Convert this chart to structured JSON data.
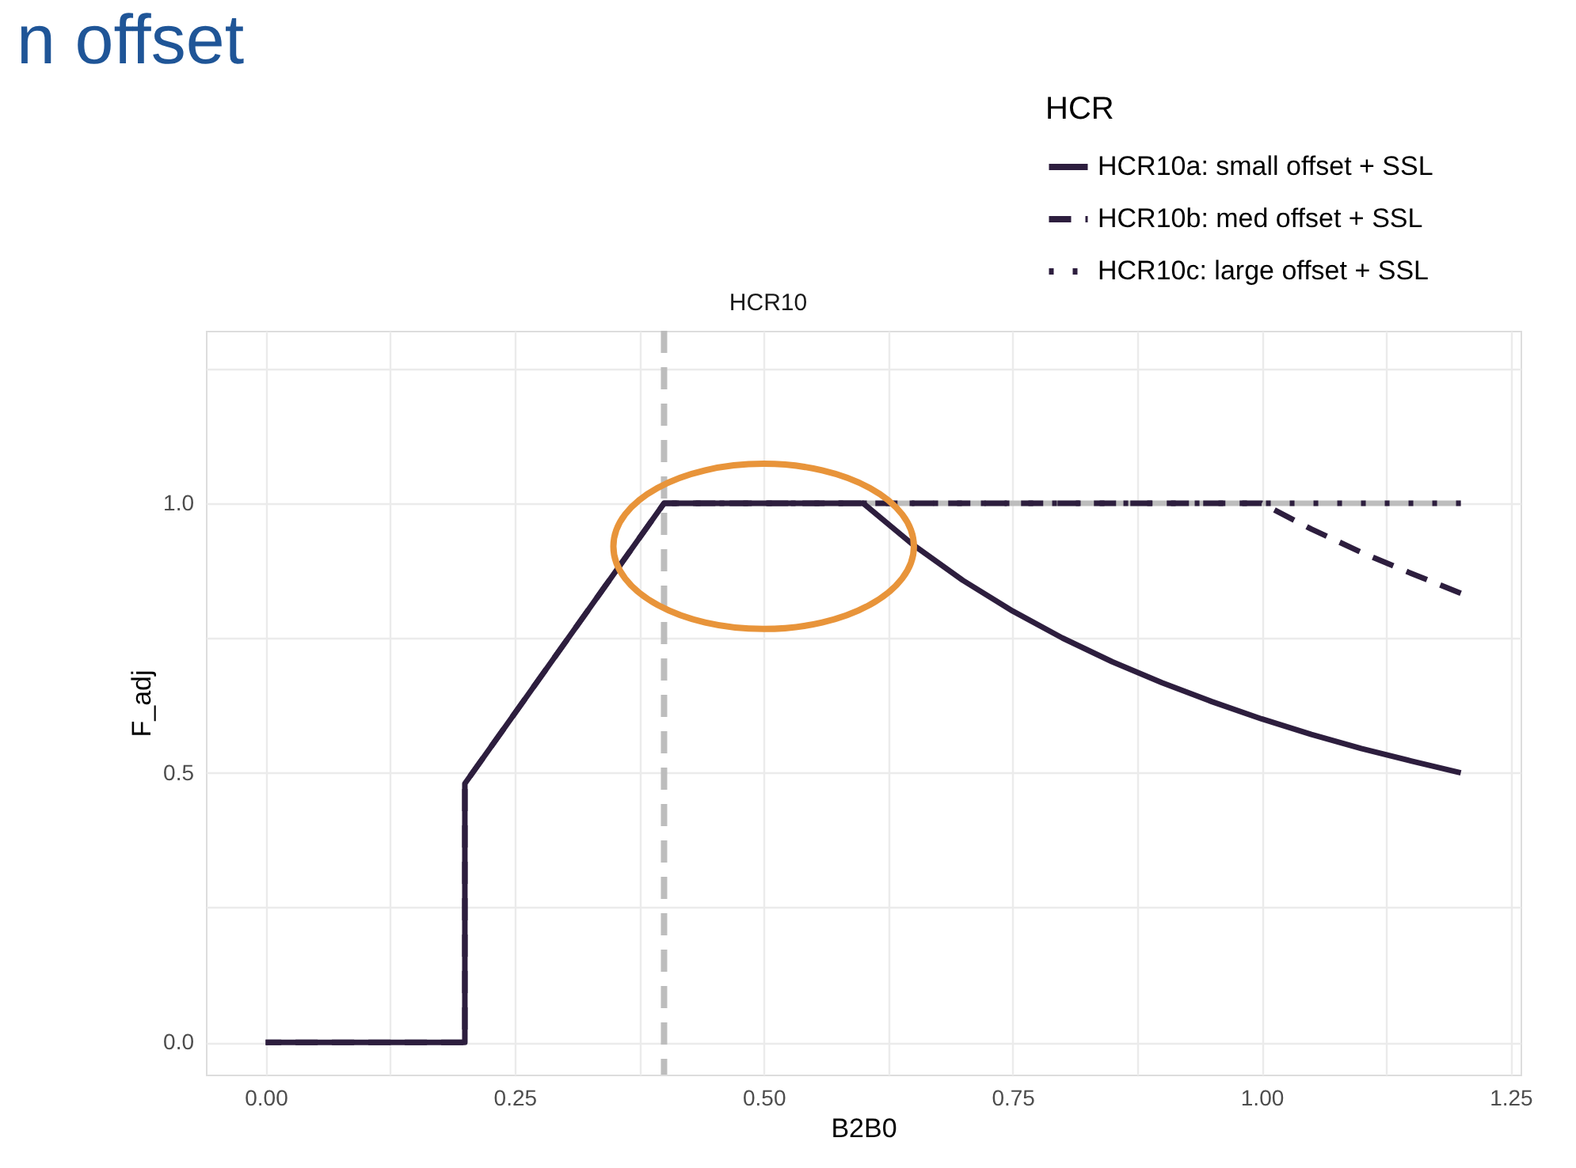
{
  "chart_data": {
    "type": "line",
    "title": "n offset",
    "subtitle": "HCR10",
    "xlabel": "B2B0",
    "ylabel": "F_adj",
    "legend_title": "HCR",
    "legend": "top right",
    "grid": true,
    "xlim": [
      -0.06,
      1.26
    ],
    "ylim": [
      -0.06,
      1.32
    ],
    "xticks": [
      {
        "value": 0,
        "label": "0.00"
      },
      {
        "value": 0.125,
        "label": null
      },
      {
        "value": 0.25,
        "label": "0.25"
      },
      {
        "value": 0.375,
        "label": null
      },
      {
        "value": 0.5,
        "label": "0.50"
      },
      {
        "value": 0.625,
        "label": null
      },
      {
        "value": 0.75,
        "label": "0.75"
      },
      {
        "value": 0.875,
        "label": null
      },
      {
        "value": 1,
        "label": "1.00"
      },
      {
        "value": 1.125,
        "label": null
      },
      {
        "value": 1.25,
        "label": "1.25"
      }
    ],
    "yticks": [
      {
        "value": 0,
        "label": "0.0"
      },
      {
        "value": 0.25,
        "label": null
      },
      0.5,
      {
        "value": 0.75,
        "label": null
      },
      {
        "value": 1,
        "label": "1.0"
      },
      {
        "value": 1.25,
        "label": null
      }
    ],
    "ref_lines": [
      {
        "axis": "x",
        "value": 0.4,
        "label": null,
        "color": "#bdbdbd",
        "line_style": "dashed"
      }
    ],
    "series": [
      {
        "color": "#bdbdbd",
        "line_style": "solid",
        "x": [
          0.4,
          1.2
        ],
        "values": [
          1,
          1
        ]
      },
      {
        "name": "HCR10a: small offset + SSL",
        "color": "#2d1e3e",
        "line_style": "solid",
        "x": [
          0,
          0.2,
          0.2,
          0.4,
          0.6,
          0.65,
          0.7,
          0.75,
          0.8,
          0.85,
          0.9,
          0.95,
          1.0,
          1.05,
          1.1,
          1.15,
          1.2
        ],
        "values": [
          0,
          0,
          0.48,
          1,
          1,
          0.923,
          0.857,
          0.8,
          0.75,
          0.706,
          0.667,
          0.632,
          0.6,
          0.571,
          0.545,
          0.522,
          0.5
        ]
      },
      {
        "name": "HCR10b: med offset + SSL",
        "color": "#2d1e3e",
        "line_style": "dashed",
        "x": [
          0,
          0.2,
          0.2,
          0.4,
          1.0,
          1.05,
          1.1,
          1.15,
          1.2
        ],
        "values": [
          0,
          0,
          0.48,
          1,
          1,
          0.952,
          0.909,
          0.87,
          0.833
        ]
      },
      {
        "name": "HCR10c: large offset + SSL",
        "color": "#2d1e3e",
        "line_style": "dotted",
        "x": [
          0.4,
          1.2
        ],
        "values": [
          1,
          1
        ]
      }
    ]
  }
}
